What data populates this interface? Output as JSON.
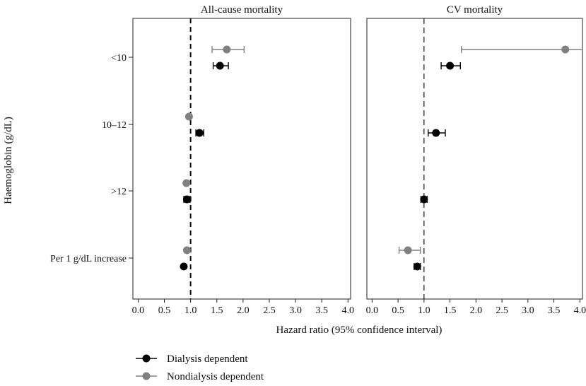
{
  "chart_data": {
    "type": "forest",
    "title": "",
    "xlabel": "Hazard ratio (95% confidence interval)",
    "ylabel": "Haemoglobin (g/dL)",
    "categories": [
      "<10",
      "10–12",
      ">12",
      "Per 1 g/dL increase"
    ],
    "xlim": [
      -0.1,
      4.05
    ],
    "xticks": [
      0.0,
      0.5,
      1.0,
      1.5,
      2.0,
      2.5,
      3.0,
      3.5,
      4.0
    ],
    "xtick_labels": [
      "0.0",
      "0.5",
      "1.0",
      "1.5",
      "2.0",
      "2.5",
      "3.0",
      "3.5",
      "4.0"
    ],
    "reference_line": 1.0,
    "series": [
      {
        "name": "Dialysis dependent",
        "color": "#000000"
      },
      {
        "name": "Nondialysis dependent",
        "color": "#808080"
      }
    ],
    "panels": [
      {
        "title": "All-cause mortality",
        "ref_style": "dashed-bold",
        "points": [
          {
            "category": "<10",
            "series": "Nondialysis dependent",
            "hr": 1.69,
            "lo": 1.41,
            "hi": 2.02
          },
          {
            "category": "<10",
            "series": "Dialysis dependent",
            "hr": 1.56,
            "lo": 1.43,
            "hi": 1.72
          },
          {
            "category": "10–12",
            "series": "Nondialysis dependent",
            "hr": 0.97,
            "lo": 0.95,
            "hi": 1.0
          },
          {
            "category": "10–12",
            "series": "Dialysis dependent",
            "hr": 1.17,
            "lo": 1.1,
            "hi": 1.25
          },
          {
            "category": ">12",
            "series": "Nondialysis dependent",
            "hr": 0.92,
            "lo": 0.89,
            "hi": 0.95
          },
          {
            "category": ">12",
            "series": "Dialysis dependent",
            "hr": 0.93,
            "lo": 0.87,
            "hi": 0.99
          },
          {
            "category": "Per 1 g/dL increase",
            "series": "Nondialysis dependent",
            "hr": 0.93,
            "lo": 0.91,
            "hi": 0.95
          },
          {
            "category": "Per 1 g/dL increase",
            "series": "Dialysis dependent",
            "hr": 0.87,
            "lo": 0.85,
            "hi": 0.89
          }
        ]
      },
      {
        "title": "CV mortality",
        "ref_style": "dashed-thin",
        "points": [
          {
            "category": "<10",
            "series": "Nondialysis dependent",
            "hr": 3.72,
            "lo": 1.72,
            "hi": 4.05
          },
          {
            "category": "<10",
            "series": "Dialysis dependent",
            "hr": 1.5,
            "lo": 1.33,
            "hi": 1.7
          },
          {
            "category": "10–12",
            "series": "Dialysis dependent",
            "hr": 1.23,
            "lo": 1.08,
            "hi": 1.41
          },
          {
            "category": ">12",
            "series": "Dialysis dependent",
            "hr": 1.0,
            "lo": 0.94,
            "hi": 1.06
          },
          {
            "category": "Per 1 g/dL increase",
            "series": "Nondialysis dependent",
            "hr": 0.69,
            "lo": 0.52,
            "hi": 0.93
          },
          {
            "category": "Per 1 g/dL increase",
            "series": "Dialysis dependent",
            "hr": 0.87,
            "lo": 0.81,
            "hi": 0.93
          }
        ]
      }
    ]
  }
}
